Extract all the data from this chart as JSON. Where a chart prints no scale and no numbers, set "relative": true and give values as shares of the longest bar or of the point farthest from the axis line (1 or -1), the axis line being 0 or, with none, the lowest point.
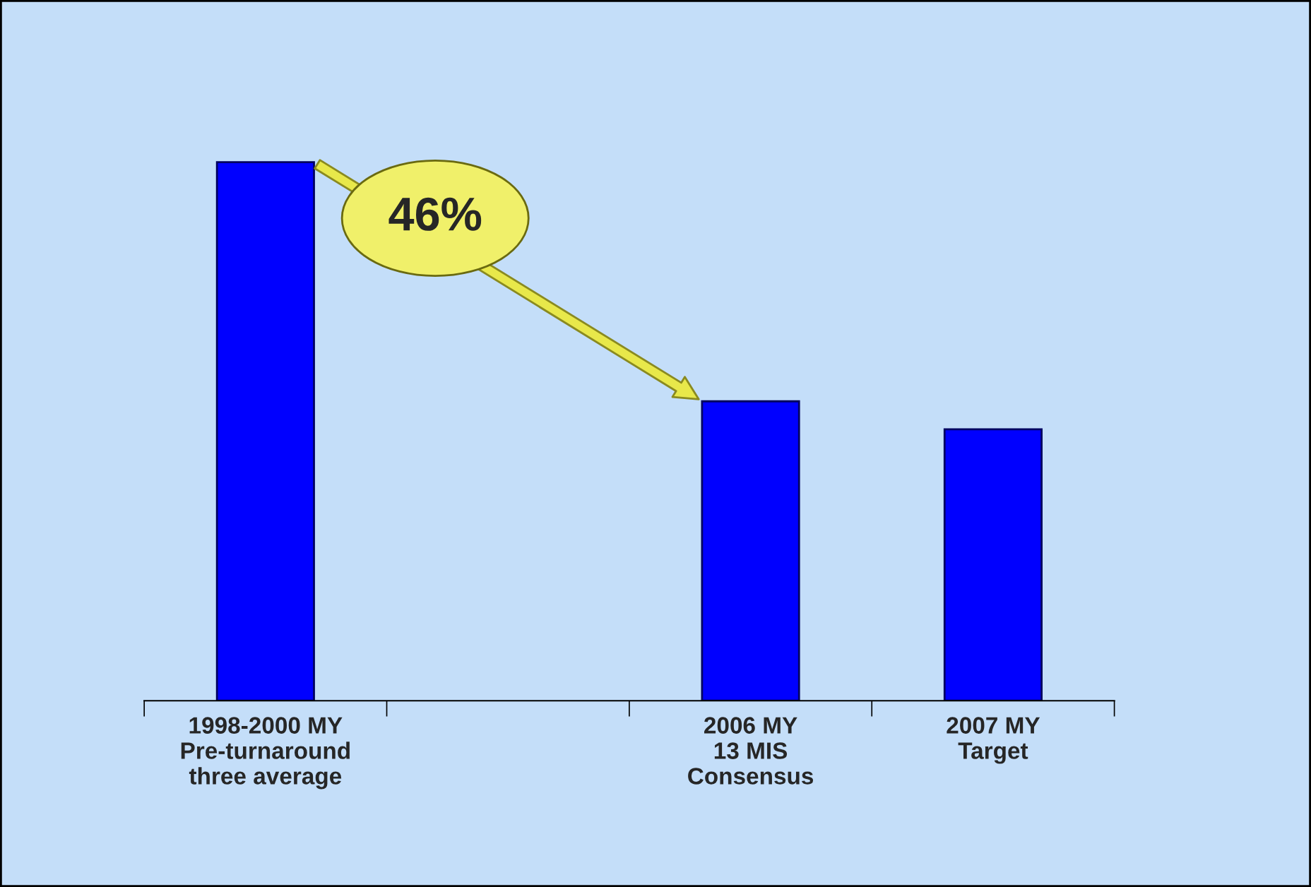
{
  "chart_data": {
    "type": "bar",
    "relative": true,
    "categories": [
      "1998-2000 MY\nPre-turnaround\nthree average",
      null,
      "2006 MY\n13 MIS\nConsensus",
      "2007 MY\nTarget"
    ],
    "values": [
      1,
      null,
      0.556,
      0.504
    ],
    "color": "#0000ff",
    "annotations": [
      "46%"
    ],
    "grid": false,
    "legend": false
  }
}
